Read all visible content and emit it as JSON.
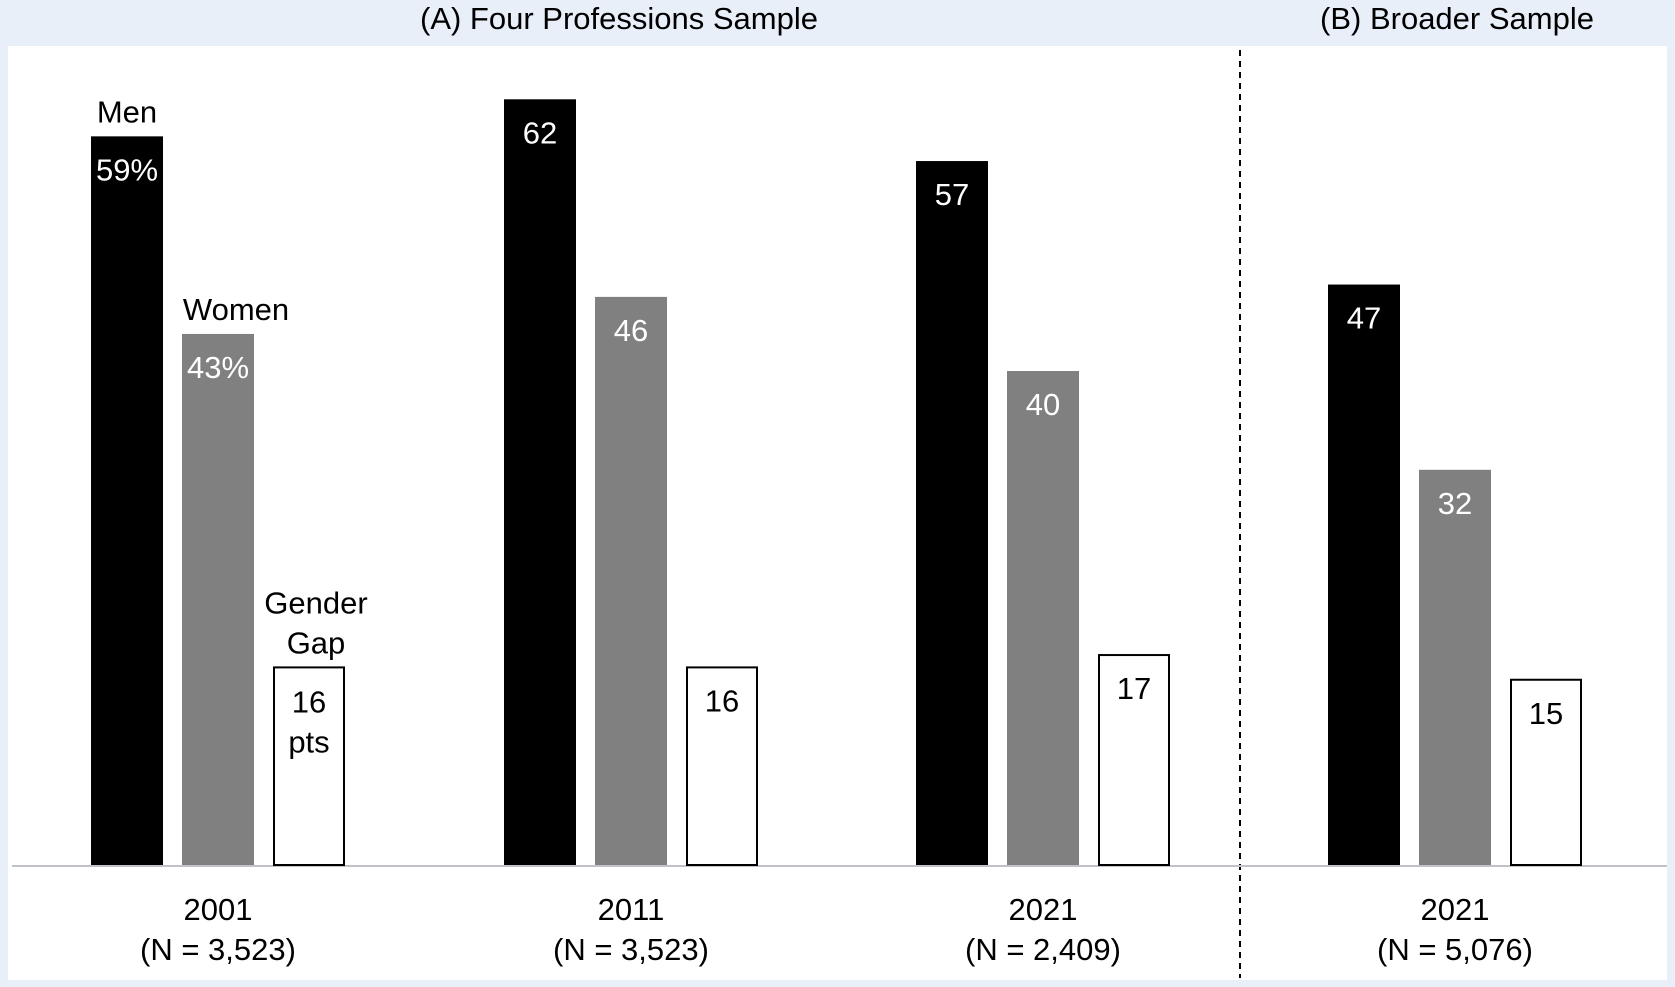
{
  "panels": [
    {
      "title": "(A) Four Professions Sample"
    },
    {
      "title": "(B) Broader Sample"
    }
  ],
  "chart_data": {
    "type": "bar",
    "ylim": [
      0,
      70
    ],
    "grid": false,
    "legend": "none",
    "categories": [
      {
        "year": "2001",
        "n_label": "(N = 3,523)",
        "panel": "(A) Four Professions Sample"
      },
      {
        "year": "2011",
        "n_label": "(N = 3,523)",
        "panel": "(A) Four Professions Sample"
      },
      {
        "year": "2021",
        "n_label": "(N = 2,409)",
        "panel": "(A) Four Professions Sample"
      },
      {
        "year": "2021",
        "n_label": "(N = 5,076)",
        "panel": "(B) Broader Sample"
      }
    ],
    "series": [
      {
        "name": "Men",
        "color": "#000000",
        "text_color": "#ffffff",
        "values": [
          59,
          62,
          57,
          47
        ],
        "labels": [
          "59%",
          "62",
          "57",
          "47"
        ]
      },
      {
        "name": "Women",
        "color": "#808080",
        "text_color": "#ffffff",
        "values": [
          43,
          46,
          40,
          32
        ],
        "labels": [
          "43%",
          "46",
          "40",
          "32"
        ]
      },
      {
        "name": "Gender Gap",
        "color": "#ffffff",
        "text_color": "#000000",
        "values": [
          16,
          16,
          17,
          15
        ],
        "labels": [
          "16 pts",
          "16",
          "17",
          "15"
        ]
      }
    ]
  }
}
